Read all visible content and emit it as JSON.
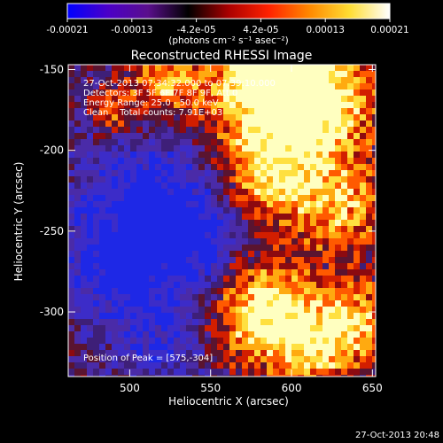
{
  "colorbar": {
    "tick_labels": [
      "-0.00021",
      "-0.00013",
      "-4.2e-05",
      "4.2e-05",
      "0.00013",
      "0.00021"
    ],
    "unit_label": "(photons cm⁻² s⁻¹ asec⁻²)",
    "colors": [
      "#0000ff",
      "#4b00c8",
      "#5a0f8c",
      "#000000",
      "#aa0000",
      "#ff2200",
      "#ff8800",
      "#ffdd33",
      "#ffffff"
    ]
  },
  "image": {
    "title": "Reconstructed RHESSI Image",
    "info_lines": [
      "27-Oct-2013 07:34:32.000 to 07:39:10.000",
      "Detectors: 3F 5F 6F 7F 8F 9F, Att 0",
      "Energy Range: 25.0 - 50.0 keV",
      "Clean    Total counts: 7.91E+03"
    ],
    "peak_label": "Position of Peak = [575,-304]"
  },
  "axes": {
    "xlabel": "Heliocentric X (arcsec)",
    "ylabel": "Heliocentric Y (arcsec)",
    "x_ticks": [
      "500",
      "550",
      "600",
      "650"
    ],
    "y_ticks": [
      "-150",
      "-200",
      "-250",
      "-300"
    ],
    "x_values": [
      500,
      550,
      600,
      650
    ],
    "y_values": [
      -150,
      -200,
      -250,
      -300
    ],
    "xlim": [
      462,
      652
    ],
    "ylim": [
      -340,
      -147
    ]
  },
  "footer": {
    "timestamp": "27-Oct-2013 20:48"
  }
}
